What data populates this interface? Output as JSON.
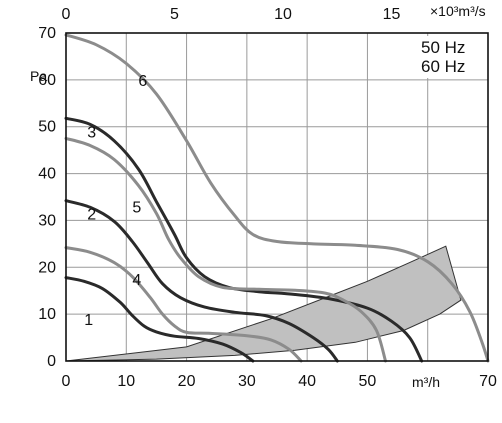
{
  "chart_data": {
    "type": "line",
    "title": "",
    "xlabel": "m³/h",
    "ylabel": "Pa",
    "x2label": "×10³m³/s",
    "xlim": [
      0,
      70
    ],
    "ylim": [
      0,
      70
    ],
    "x2lim": [
      0,
      19.4444
    ],
    "grid": true,
    "colors": {
      "hz50": "#2a2a2a",
      "hz60": "#8c8c8c",
      "region_fill": "#c0c0c0",
      "grid": "#9a9a9a",
      "frame": "#111111"
    },
    "legend": {
      "placement": "top-right",
      "entries": [
        "50 Hz",
        "60 Hz"
      ]
    },
    "x_ticks": [
      0,
      10,
      20,
      30,
      40,
      50,
      70
    ],
    "y_ticks": [
      0,
      10,
      20,
      30,
      40,
      50,
      60,
      70
    ],
    "x2_ticks": [
      0,
      5,
      10,
      15
    ],
    "grid_x": [
      0,
      10,
      20,
      30,
      40,
      50,
      60,
      70
    ],
    "grid_y": [
      0,
      10,
      20,
      30,
      40,
      50,
      60,
      70
    ],
    "operating_region": {
      "polygon": [
        [
          0,
          0
        ],
        [
          20,
          3
        ],
        [
          34,
          9
        ],
        [
          44,
          14
        ],
        [
          50,
          17
        ],
        [
          57,
          21
        ],
        [
          63,
          24.5
        ],
        [
          65.5,
          13
        ],
        [
          62,
          10
        ],
        [
          56,
          6.5
        ],
        [
          48,
          4
        ],
        [
          38,
          2.3
        ],
        [
          28,
          1.2
        ],
        [
          15,
          0.4
        ],
        [
          0,
          0
        ]
      ]
    },
    "series": [
      {
        "label": "1",
        "frequency": "50 Hz",
        "points": [
          [
            0,
            17.8
          ],
          [
            3,
            17
          ],
          [
            6,
            15.5
          ],
          [
            9,
            12.5
          ],
          [
            11,
            9.7
          ],
          [
            13,
            7.4
          ],
          [
            15,
            6.2
          ],
          [
            18,
            5.3
          ],
          [
            22,
            4.8
          ],
          [
            26,
            3.6
          ],
          [
            29,
            1.8
          ],
          [
            31,
            0
          ]
        ]
      },
      {
        "label": "2",
        "frequency": "50 Hz",
        "points": [
          [
            0,
            34.2
          ],
          [
            4,
            32.8
          ],
          [
            8,
            29.8
          ],
          [
            11,
            25.5
          ],
          [
            13.5,
            21
          ],
          [
            16,
            16.5
          ],
          [
            19,
            13.5
          ],
          [
            23,
            11.5
          ],
          [
            28,
            10.4
          ],
          [
            33,
            9.7
          ],
          [
            37,
            8
          ],
          [
            41,
            5
          ],
          [
            43.5,
            2.5
          ],
          [
            45,
            0
          ]
        ]
      },
      {
        "label": "3",
        "frequency": "50 Hz",
        "points": [
          [
            0,
            51.8
          ],
          [
            4,
            50.5
          ],
          [
            8,
            47
          ],
          [
            12,
            41
          ],
          [
            15,
            34
          ],
          [
            18,
            27
          ],
          [
            20,
            22
          ],
          [
            23,
            18
          ],
          [
            27,
            15.7
          ],
          [
            32,
            14.8
          ],
          [
            38,
            14.2
          ],
          [
            44,
            13.2
          ],
          [
            50,
            11.3
          ],
          [
            54,
            8.5
          ],
          [
            57,
            5
          ],
          [
            59,
            0
          ]
        ]
      },
      {
        "label": "4",
        "frequency": "60 Hz",
        "points": [
          [
            0,
            24.2
          ],
          [
            4,
            23.2
          ],
          [
            8,
            21
          ],
          [
            11,
            18
          ],
          [
            14,
            13.5
          ],
          [
            16,
            10
          ],
          [
            18,
            7.5
          ],
          [
            20,
            6.1
          ],
          [
            24,
            5.9
          ],
          [
            30,
            5.4
          ],
          [
            34,
            4.5
          ],
          [
            37,
            2.5
          ],
          [
            39,
            0
          ]
        ]
      },
      {
        "label": "5",
        "frequency": "60 Hz",
        "points": [
          [
            0,
            47.5
          ],
          [
            4,
            46
          ],
          [
            8,
            43
          ],
          [
            12,
            37.5
          ],
          [
            15,
            31.5
          ],
          [
            17,
            26
          ],
          [
            19,
            22
          ],
          [
            22,
            18
          ],
          [
            26,
            15.7
          ],
          [
            32,
            15.3
          ],
          [
            38,
            15.1
          ],
          [
            43,
            14.5
          ],
          [
            46,
            13
          ],
          [
            49,
            10.5
          ],
          [
            51.5,
            6.5
          ],
          [
            53,
            0
          ]
        ]
      },
      {
        "label": "6",
        "frequency": "60 Hz",
        "points": [
          [
            0,
            69.6
          ],
          [
            5,
            67.5
          ],
          [
            10,
            63.5
          ],
          [
            15,
            57
          ],
          [
            20,
            47
          ],
          [
            24,
            38
          ],
          [
            28,
            31
          ],
          [
            31,
            27
          ],
          [
            35,
            25.5
          ],
          [
            41,
            25
          ],
          [
            48,
            24.7
          ],
          [
            55,
            23.8
          ],
          [
            60,
            21.2
          ],
          [
            64,
            16.5
          ],
          [
            67,
            10.5
          ],
          [
            69,
            4
          ],
          [
            70,
            0
          ]
        ]
      }
    ]
  }
}
